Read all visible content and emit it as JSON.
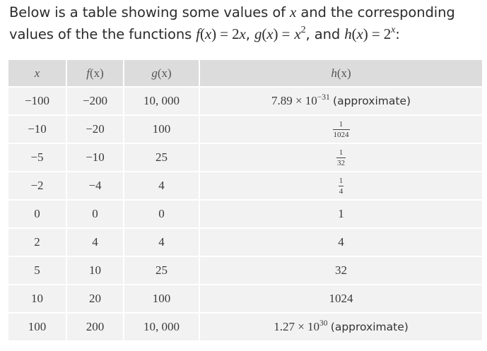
{
  "intro": {
    "lead": "Below is a table showing some values of",
    "var_x": "x",
    "and_corr": "and the corresponding",
    "line2_lead": "values of the the functions",
    "f_def_fn": "f",
    "f_def_arg": "(",
    "f_def_x": "x",
    "f_def_close": ") = 2",
    "f_def_x2": "x",
    "comma1": ",",
    "g_def_fn": "g",
    "g_def_open": "(",
    "g_def_x": "x",
    "g_def_close": ") =",
    "g_def_base": "x",
    "g_def_exp": "2",
    "comma2": ", and",
    "h_def_fn": "h",
    "h_def_open": "(",
    "h_def_x": "x",
    "h_def_close": ") = 2",
    "h_def_exp": "x",
    "colon": ":"
  },
  "table": {
    "headers": {
      "x": "x",
      "f_fn": "f",
      "f_arg": "(x)",
      "g_fn": "g",
      "g_arg": "(x)",
      "h_fn": "h",
      "h_arg": "(x)"
    },
    "rows": [
      {
        "x": "−100",
        "f": "−200",
        "g": "10, 000",
        "h_base": "7.89 × 10",
        "h_exp": "−31",
        "h_note": "(approximate)"
      },
      {
        "x": "−10",
        "f": "−20",
        "g": "100",
        "h_num": "1",
        "h_den": "1024"
      },
      {
        "x": "−5",
        "f": "−10",
        "g": "25",
        "h_num": "1",
        "h_den": "32"
      },
      {
        "x": "−2",
        "f": "−4",
        "g": "4",
        "h_num": "1",
        "h_den": "4"
      },
      {
        "x": "0",
        "f": "0",
        "g": "0",
        "h": "1"
      },
      {
        "x": "2",
        "f": "4",
        "g": "4",
        "h": "4"
      },
      {
        "x": "5",
        "f": "10",
        "g": "25",
        "h": "32"
      },
      {
        "x": "10",
        "f": "20",
        "g": "100",
        "h": "1024"
      },
      {
        "x": "100",
        "f": "200",
        "g": "10, 000",
        "h_base": "1.27 × 10",
        "h_exp": "30",
        "h_note": "(approximate)"
      }
    ]
  }
}
